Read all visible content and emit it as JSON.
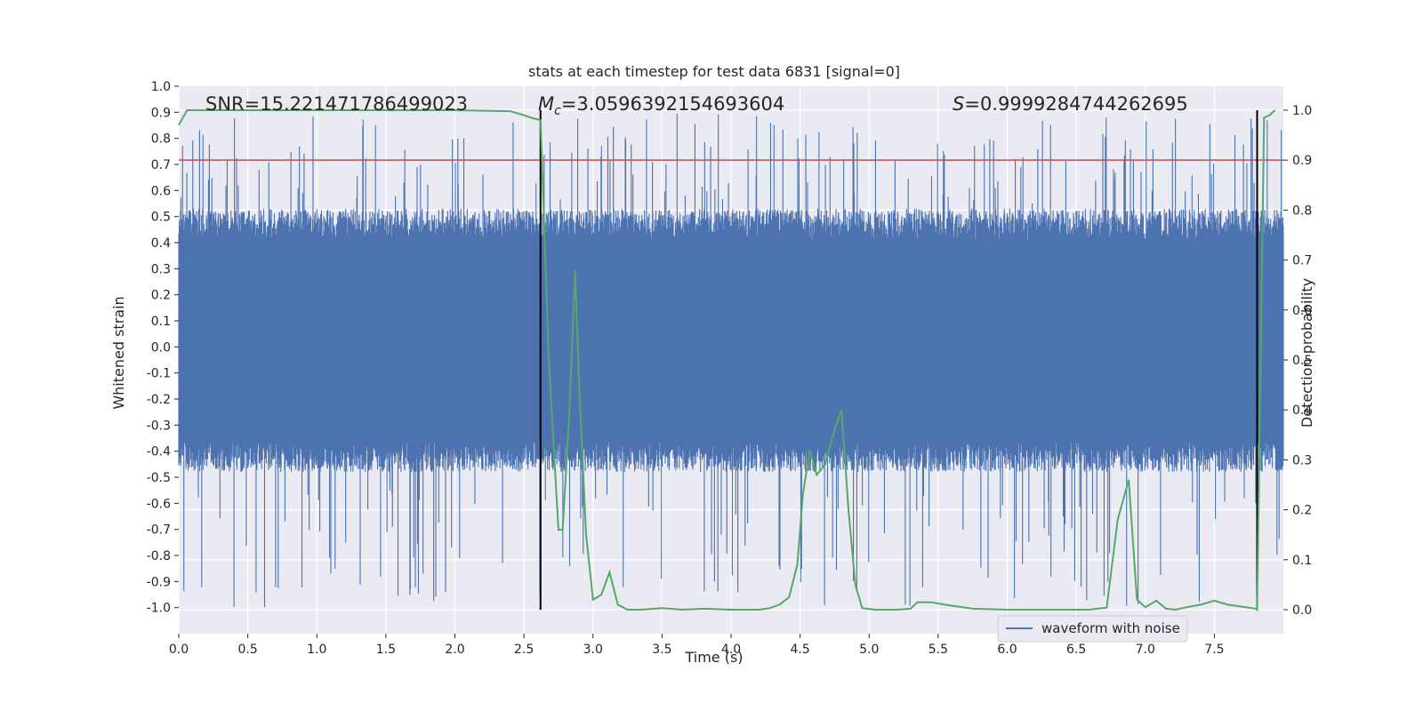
{
  "chart_data": {
    "type": "line",
    "title": "stats at each timestep for test data 6831 [signal=0]",
    "xlabel": "Time (s)",
    "ylabel_left": "Whitened strain",
    "ylabel_right": "Detection probability",
    "xlim": [
      0,
      8
    ],
    "ylim_left": [
      -1.1,
      1.0
    ],
    "ylim_right": [
      -0.048,
      1.048
    ],
    "x_ticks": [
      "0.0",
      "0.5",
      "1.0",
      "1.5",
      "2.0",
      "2.5",
      "3.0",
      "3.5",
      "4.0",
      "4.5",
      "5.0",
      "5.5",
      "6.0",
      "6.5",
      "7.0",
      "7.5"
    ],
    "y_left_ticks": [
      "-1.0",
      "-0.9",
      "-0.8",
      "-0.7",
      "-0.6",
      "-0.5",
      "-0.4",
      "-0.3",
      "-0.2",
      "-0.1",
      "0.0",
      "0.1",
      "0.2",
      "0.3",
      "0.4",
      "0.5",
      "0.6",
      "0.7",
      "0.8",
      "0.9",
      "1.0"
    ],
    "y_right_ticks": [
      "0.0",
      "0.1",
      "0.2",
      "0.3",
      "0.4",
      "0.5",
      "0.6",
      "0.7",
      "0.8",
      "0.9",
      "1.0"
    ],
    "annotations": {
      "snr": "SNR=15.221471786499023",
      "mc_symbol": "M",
      "mc_sub": "c",
      "mc_value": "=3.0596392154693604",
      "s_symbol": "S",
      "s_value": "=0.9999284744262695"
    },
    "threshold": {
      "value": 0.9,
      "axis": "right",
      "color": "#c44e52"
    },
    "vertical_markers": [
      2.62,
      7.81
    ],
    "waveform": {
      "name": "waveform with noise",
      "color": "#4c72b0",
      "x_range": [
        0,
        8
      ],
      "band": [
        -0.4,
        0.45
      ],
      "peak_max": 0.9,
      "trough_min": -1.0
    },
    "detection_probability": {
      "color": "#55a868",
      "x": [
        0.0,
        0.06,
        0.2,
        0.5,
        1.0,
        1.5,
        2.0,
        2.4,
        2.5,
        2.55,
        2.62,
        2.68,
        2.75,
        2.78,
        2.83,
        2.87,
        2.9,
        2.95,
        3.0,
        3.06,
        3.12,
        3.18,
        3.25,
        3.35,
        3.5,
        3.65,
        3.8,
        4.0,
        4.2,
        4.28,
        4.35,
        4.42,
        4.48,
        4.52,
        4.57,
        4.62,
        4.68,
        4.75,
        4.8,
        4.85,
        4.9,
        4.95,
        5.05,
        5.2,
        5.3,
        5.35,
        5.45,
        5.55,
        5.75,
        6.0,
        6.2,
        6.4,
        6.6,
        6.65,
        6.72,
        6.8,
        6.88,
        6.94,
        7.0,
        7.08,
        7.15,
        7.22,
        7.3,
        7.4,
        7.5,
        7.6,
        7.8,
        7.81,
        7.86,
        7.9,
        7.94
      ],
      "y": [
        0.97,
        1.0,
        1.0,
        1.0,
        1.0,
        1.0,
        1.0,
        0.998,
        0.99,
        0.985,
        0.98,
        0.5,
        0.16,
        0.16,
        0.4,
        0.68,
        0.45,
        0.15,
        0.02,
        0.03,
        0.075,
        0.01,
        0.0,
        0.0,
        0.003,
        0.0,
        0.002,
        0.0,
        0.0,
        0.003,
        0.01,
        0.025,
        0.09,
        0.23,
        0.32,
        0.27,
        0.29,
        0.36,
        0.4,
        0.2,
        0.05,
        0.003,
        0.0,
        0.0,
        0.002,
        0.015,
        0.015,
        0.01,
        0.002,
        0.0,
        0.0,
        0.0,
        0.0,
        0.002,
        0.004,
        0.18,
        0.26,
        0.02,
        0.005,
        0.018,
        0.002,
        0.0,
        0.005,
        0.01,
        0.018,
        0.01,
        0.002,
        0.0,
        0.985,
        0.99,
        1.0
      ]
    },
    "legend": {
      "entries": [
        "waveform with noise"
      ],
      "position": "lower right"
    }
  }
}
